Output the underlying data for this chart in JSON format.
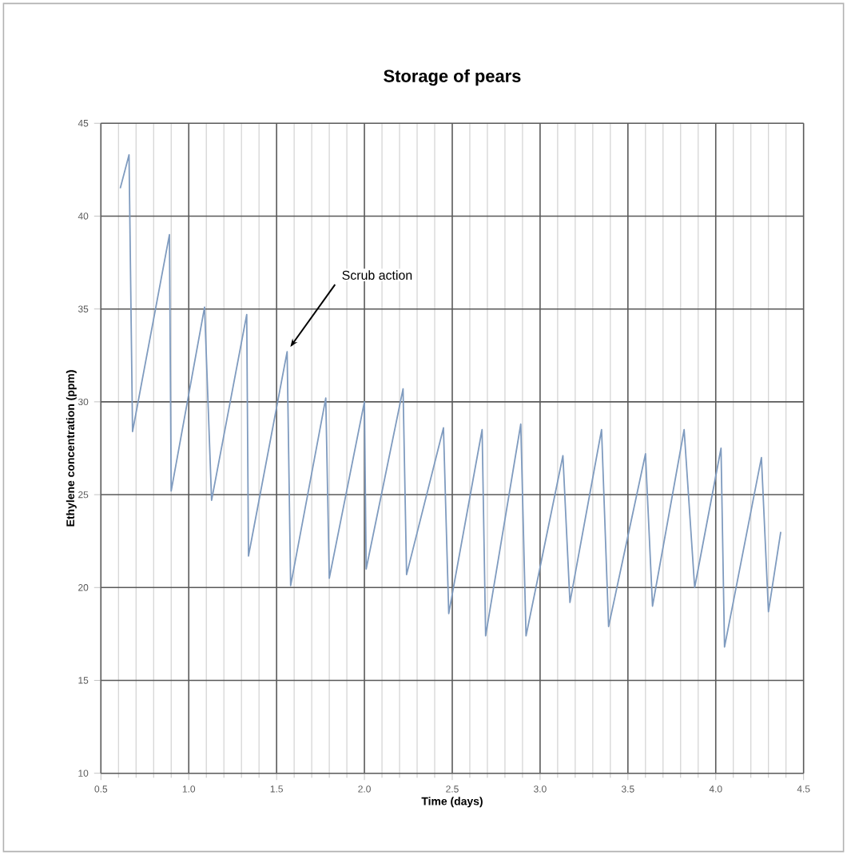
{
  "chart_data": {
    "type": "line",
    "title": "Storage of pears",
    "xlabel": "Time (days)",
    "ylabel": "Ethylene concentration (ppm)",
    "x": [
      0.61,
      0.66,
      0.68,
      0.89,
      0.9,
      1.09,
      1.13,
      1.33,
      1.34,
      1.56,
      1.58,
      1.78,
      1.8,
      2.0,
      2.01,
      2.22,
      2.24,
      2.45,
      2.48,
      2.67,
      2.69,
      2.89,
      2.92,
      3.13,
      3.17,
      3.35,
      3.39,
      3.6,
      3.64,
      3.82,
      3.88,
      4.03,
      4.05,
      4.26,
      4.3,
      4.37
    ],
    "values": [
      41.5,
      43.3,
      28.4,
      39.0,
      25.2,
      35.1,
      24.7,
      34.7,
      21.7,
      32.7,
      20.1,
      30.2,
      20.5,
      30.0,
      21.0,
      30.7,
      20.7,
      28.6,
      18.6,
      28.5,
      17.4,
      28.8,
      17.4,
      27.1,
      19.2,
      28.5,
      17.9,
      27.2,
      19.0,
      28.5,
      20.0,
      27.5,
      16.8,
      27.0,
      18.7,
      23.0
    ],
    "color": "#7f9bbf",
    "marker": "none",
    "line_style": "solid",
    "xlim": [
      0.5,
      4.5
    ],
    "ylim": [
      10,
      45
    ],
    "xticks": [
      0.5,
      {
        "value": 1,
        "label": "1.0"
      },
      1.5,
      {
        "value": 2,
        "label": "2.0"
      },
      2.5,
      {
        "value": 3,
        "label": "3.0"
      },
      3.5,
      {
        "value": 4,
        "label": "4.0"
      },
      4.5
    ],
    "yticks": [
      10,
      15,
      20,
      25,
      30,
      35,
      40,
      45
    ],
    "grid": true,
    "annotations": [
      {
        "text": "Scrub action",
        "x": 1.56,
        "y": 32.7
      }
    ]
  }
}
